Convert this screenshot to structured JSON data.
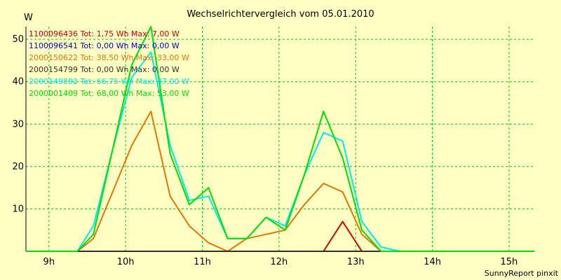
{
  "chart_data": {
    "type": "line",
    "title": "Wechselrichtervergleich vom 05.01.2010",
    "ylabel": "W",
    "xlabel": "",
    "x_tick_labels": [
      "9h",
      "10h",
      "11h",
      "12h",
      "13h",
      "14h",
      "15h"
    ],
    "x_tick_values": [
      9,
      10,
      11,
      12,
      13,
      14,
      15
    ],
    "xlim": [
      8.7,
      15.33
    ],
    "y_tick_labels": [
      "10",
      "20",
      "30",
      "40",
      "50"
    ],
    "y_tick_values": [
      10,
      20,
      30,
      40,
      50
    ],
    "ylim": [
      0,
      53
    ],
    "grid": true,
    "legend_position": "top-left",
    "series": [
      {
        "name": "1100096436 Tot: 1,75 Wh Max: 7,00 W",
        "color": "#cc0000",
        "x": [
          8.7,
          12.58,
          12.83,
          13.08,
          15.33
        ],
        "y": [
          0,
          0,
          7,
          0,
          0
        ]
      },
      {
        "name": "1100096541 Tot: 0,00 Wh Max: 0,00 W",
        "color": "#0000cc",
        "x": [
          8.7,
          15.33
        ],
        "y": [
          0,
          0
        ]
      },
      {
        "name": "2000150622 Tot: 38,50 Wh Max: 33,00 W",
        "color": "#e07800",
        "x": [
          8.7,
          9.37,
          9.58,
          9.83,
          10.08,
          10.33,
          10.58,
          10.83,
          11.08,
          11.33,
          11.58,
          11.83,
          12.08,
          12.33,
          12.58,
          12.83,
          13.08,
          13.33,
          15.33
        ],
        "y": [
          0,
          0,
          3,
          14,
          25,
          33,
          13,
          6,
          2,
          0,
          3,
          4,
          5,
          11,
          16,
          14,
          4,
          0,
          0
        ]
      },
      {
        "name": "2000154799 Tot: 0,00 Wh Max: 0,00 W",
        "color": "#303030",
        "x": [
          8.7,
          15.33
        ],
        "y": [
          0,
          0
        ]
      },
      {
        "name": "2000149892 Tot: 66,75 Wh Max: 47,00 W",
        "color": "#00e8e8",
        "x": [
          8.7,
          9.37,
          9.58,
          9.83,
          10.08,
          10.33,
          10.58,
          10.83,
          11.08,
          11.33,
          11.58,
          11.83,
          12.08,
          12.33,
          12.58,
          12.83,
          13.08,
          13.33,
          13.58,
          15.33
        ],
        "y": [
          0,
          0,
          6,
          24,
          41,
          47,
          25,
          12,
          13,
          3,
          3,
          8,
          6,
          18,
          28,
          26,
          7,
          1,
          0,
          0
        ]
      },
      {
        "name": "2000001409 Tot: 68,00 Wh Max: 53,00 W",
        "color": "#00dd00",
        "x": [
          8.7,
          9.37,
          9.58,
          9.83,
          10.08,
          10.33,
          10.58,
          10.83,
          11.08,
          11.33,
          11.58,
          11.83,
          12.08,
          12.33,
          12.58,
          12.83,
          13.08,
          13.33,
          15.33
        ],
        "y": [
          0,
          0,
          4,
          24,
          44,
          53,
          23,
          11,
          15,
          3,
          3,
          8,
          5,
          18,
          33,
          22,
          5,
          0,
          0
        ]
      }
    ]
  },
  "footer": "SunnyReport pinxit",
  "colors": {
    "background": "#ffffc4",
    "grid": "#00cc00",
    "axis": "#000000"
  }
}
